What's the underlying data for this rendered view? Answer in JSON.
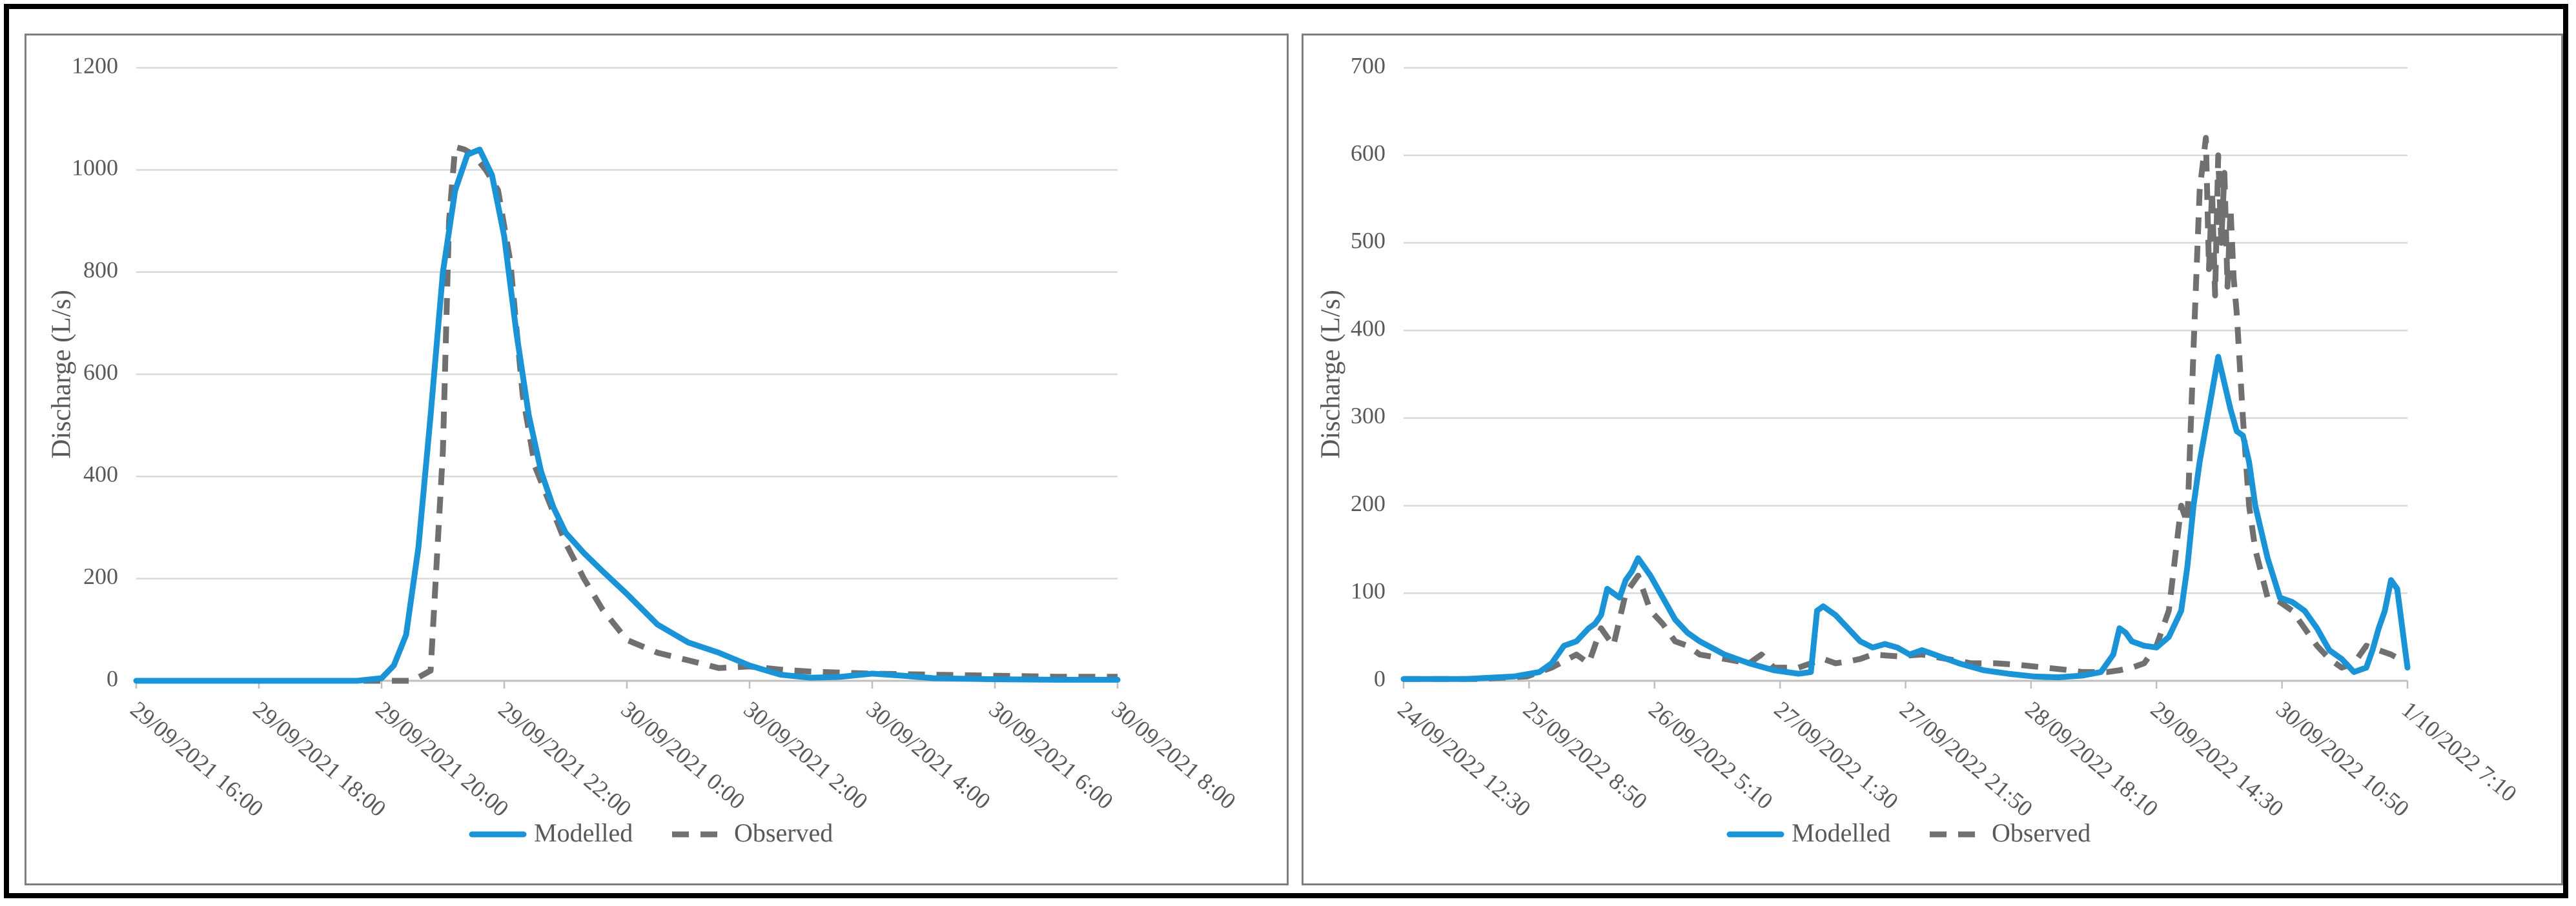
{
  "chart_data": [
    {
      "type": "line",
      "title": "",
      "xlabel": "",
      "ylabel": "Discharge (L/s)",
      "ylim": [
        0,
        1200
      ],
      "yticks": [
        0,
        200,
        400,
        600,
        800,
        1000,
        1200
      ],
      "x_tick_labels": [
        "29/09/2021 16:00",
        "29/09/2021 18:00",
        "29/09/2021 20:00",
        "29/09/2021 22:00",
        "30/09/2021 0:00",
        "30/09/2021 2:00",
        "30/09/2021 4:00",
        "30/09/2021 6:00",
        "30/09/2021 8:00"
      ],
      "x_unit": "hours since 29/09/2021 16:00",
      "xlim": [
        0,
        16
      ],
      "grid": true,
      "legend": "bottom",
      "series": [
        {
          "name": "Modelled",
          "color": "#1a94d7",
          "style": "solid",
          "x": [
            0,
            3.6,
            4.0,
            4.2,
            4.4,
            4.6,
            4.8,
            5.0,
            5.2,
            5.4,
            5.6,
            5.8,
            6.0,
            6.2,
            6.4,
            6.6,
            6.8,
            7.0,
            7.3,
            7.6,
            8.0,
            8.5,
            9.0,
            9.5,
            10.0,
            10.5,
            11.0,
            11.5,
            12.0,
            12.5,
            13.0,
            14.0,
            15.0,
            16.0
          ],
          "y": [
            0,
            0,
            5,
            30,
            90,
            260,
            520,
            800,
            960,
            1030,
            1040,
            990,
            870,
            680,
            520,
            410,
            340,
            290,
            250,
            215,
            170,
            110,
            75,
            55,
            30,
            12,
            6,
            8,
            14,
            10,
            5,
            3,
            2,
            2
          ]
        },
        {
          "name": "Observed",
          "color": "#707070",
          "style": "dashed",
          "x": [
            0,
            4.5,
            4.8,
            5.0,
            5.1,
            5.2,
            5.35,
            5.5,
            5.7,
            5.9,
            6.1,
            6.3,
            6.5,
            6.8,
            7.0,
            7.3,
            7.6,
            8.0,
            8.5,
            9.0,
            9.5,
            10.0,
            10.5,
            11.0,
            12.0,
            13.0,
            14.0,
            15.0,
            16.0
          ],
          "y": [
            0,
            0,
            20,
            450,
            900,
            1045,
            1040,
            1030,
            1000,
            960,
            820,
            560,
            420,
            330,
            270,
            200,
            140,
            80,
            55,
            40,
            25,
            28,
            22,
            18,
            14,
            12,
            10,
            8,
            8
          ]
        }
      ]
    },
    {
      "type": "line",
      "title": "",
      "xlabel": "",
      "ylabel": "Discharge (L/s)",
      "ylim": [
        0,
        700
      ],
      "yticks": [
        0,
        100,
        200,
        300,
        400,
        500,
        600,
        700
      ],
      "x_tick_labels": [
        "24/09/2022 12:30",
        "25/09/2022 8:50",
        "26/09/2022 5:10",
        "27/09/2022 1:30",
        "27/09/2022 21:50",
        "28/09/2022 18:10",
        "29/09/2022 14:30",
        "30/09/2022 10:50",
        "1/10/2022 7:10"
      ],
      "x_unit": "hours since 24/09/2022 12:30",
      "xlim": [
        0,
        162.67
      ],
      "grid": true,
      "legend": "bottom",
      "series": [
        {
          "name": "Modelled",
          "color": "#1a94d7",
          "style": "solid",
          "x": [
            0,
            10,
            18,
            22,
            24,
            26,
            28,
            30,
            31,
            32,
            33,
            34,
            35,
            36,
            37,
            38,
            40,
            42,
            44,
            46,
            48,
            52,
            56,
            60,
            64,
            66,
            67,
            68,
            69,
            70,
            72,
            74,
            76,
            78,
            80,
            82,
            84,
            86,
            88,
            90,
            94,
            98,
            102,
            106,
            110,
            113,
            115,
            116,
            117,
            118,
            120,
            122,
            124,
            126,
            127,
            128,
            129,
            130,
            131,
            132,
            133,
            134,
            135,
            136,
            137,
            138,
            140,
            142,
            144,
            146,
            148,
            150,
            152,
            154,
            156,
            157,
            158,
            159,
            160,
            161,
            162.67
          ],
          "y": [
            2,
            2,
            5,
            10,
            20,
            40,
            45,
            60,
            65,
            75,
            105,
            100,
            95,
            115,
            125,
            140,
            120,
            95,
            70,
            55,
            45,
            30,
            20,
            12,
            8,
            10,
            80,
            85,
            80,
            75,
            60,
            45,
            38,
            42,
            38,
            30,
            35,
            30,
            25,
            20,
            12,
            8,
            5,
            4,
            6,
            10,
            30,
            60,
            55,
            45,
            40,
            38,
            50,
            80,
            130,
            200,
            250,
            290,
            330,
            370,
            340,
            310,
            285,
            280,
            250,
            200,
            140,
            95,
            90,
            80,
            60,
            35,
            25,
            10,
            15,
            35,
            60,
            80,
            115,
            105,
            15
          ],
          "x_tail": [
            162.67
          ],
          "y_tail": [
            15
          ]
        },
        {
          "name": "Observed",
          "color": "#707070",
          "style": "dashed",
          "x": [
            0,
            12,
            20,
            24,
            28,
            30,
            32,
            34,
            36,
            37,
            38,
            39,
            40,
            42,
            44,
            46,
            48,
            52,
            56,
            58,
            60,
            64,
            66,
            68,
            70,
            72,
            74,
            76,
            80,
            84,
            88,
            92,
            96,
            100,
            104,
            108,
            110,
            112,
            114,
            116,
            118,
            120,
            122,
            124,
            126,
            127,
            128,
            129,
            130,
            130.5,
            131,
            131.5,
            132,
            132.5,
            133,
            133.5,
            134,
            134.5,
            135,
            136,
            137,
            138,
            140,
            142,
            144,
            146,
            148,
            150,
            152,
            154,
            156,
            158,
            160,
            162.67
          ],
          "y": [
            2,
            2,
            5,
            15,
            30,
            20,
            60,
            40,
            100,
            110,
            120,
            100,
            80,
            65,
            45,
            40,
            30,
            25,
            20,
            30,
            15,
            15,
            20,
            25,
            20,
            22,
            25,
            30,
            28,
            30,
            25,
            20,
            20,
            18,
            15,
            12,
            10,
            10,
            10,
            12,
            15,
            20,
            40,
            80,
            200,
            180,
            380,
            560,
            620,
            470,
            560,
            440,
            600,
            500,
            580,
            450,
            540,
            460,
            420,
            300,
            200,
            150,
            95,
            90,
            80,
            60,
            40,
            25,
            15,
            20,
            40,
            35,
            30,
            20
          ]
        }
      ]
    }
  ]
}
